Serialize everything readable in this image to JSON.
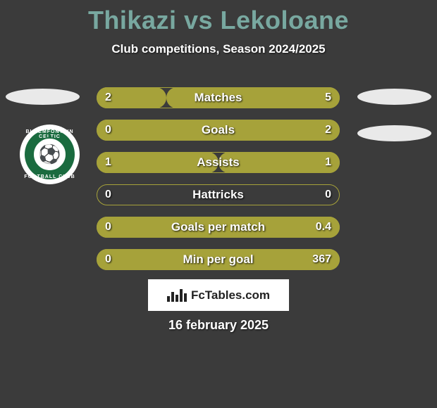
{
  "background_color": "#3b3b3b",
  "title_color": "#78a8a0",
  "text_color": "#ffffff",
  "oval_color": "#e9e9e9",
  "title": "Thikazi vs Lekoloane",
  "subtitle": "Club competitions, Season 2024/2025",
  "date": "16 february 2025",
  "club_logo": {
    "outer_bg": "#ffffff",
    "ring_color": "#1a6b3f",
    "inner_bg": "#ffffff",
    "text_color": "#1a6b3f",
    "top_text": "BLOEMFONTEIN CELTIC",
    "bottom_text": "FOOTBALL CLUB",
    "emoji": "⚽"
  },
  "bars": {
    "track_bg": "#3b3b3b",
    "track_border": "#a6a23a",
    "fill_left_color": "#a6a23a",
    "fill_right_color": "#a6a23a",
    "label_color": "#ffffff",
    "value_color": "#ffffff",
    "rows": [
      {
        "label": "Matches",
        "left": "2",
        "right": "5",
        "left_pct": 28.6,
        "right_pct": 71.4
      },
      {
        "label": "Goals",
        "left": "0",
        "right": "2",
        "left_pct": 0.0,
        "right_pct": 100.0
      },
      {
        "label": "Assists",
        "left": "1",
        "right": "1",
        "left_pct": 50.0,
        "right_pct": 50.0
      },
      {
        "label": "Hattricks",
        "left": "0",
        "right": "0",
        "left_pct": 0.0,
        "right_pct": 0.0
      },
      {
        "label": "Goals per match",
        "left": "0",
        "right": "0.4",
        "left_pct": 0.0,
        "right_pct": 100.0
      },
      {
        "label": "Min per goal",
        "left": "0",
        "right": "367",
        "left_pct": 0.0,
        "right_pct": 100.0
      }
    ]
  },
  "fctables": {
    "bg": "#ffffff",
    "fg": "#222222",
    "text": "FcTables.com",
    "bars": [
      8,
      14,
      10,
      18,
      12
    ]
  }
}
